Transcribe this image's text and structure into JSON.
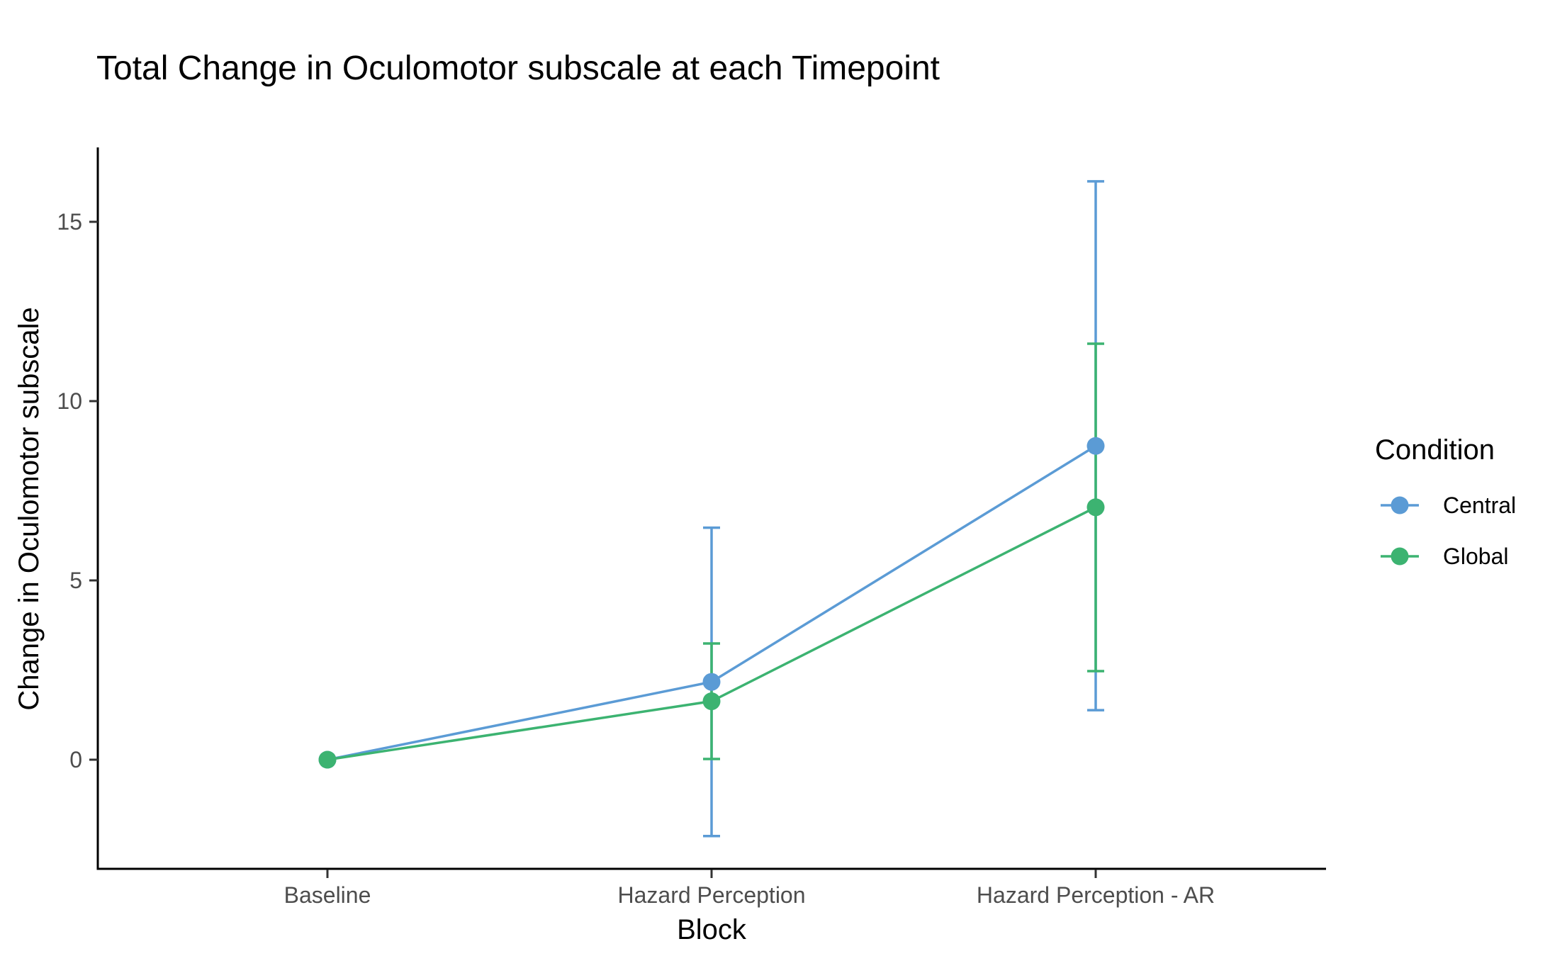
{
  "chart_data": {
    "type": "line",
    "title": "Total Change in Oculomotor subscale at each Timepoint",
    "xlabel": "Block",
    "ylabel": "Change in Oculomotor subscale",
    "categories": [
      "Baseline",
      "Hazard Perception",
      "Hazard Perception - AR"
    ],
    "yticks": [
      0,
      5,
      10,
      15
    ],
    "ylim": [
      -3,
      17
    ],
    "grid": false,
    "legend": {
      "title": "Condition",
      "placement": "right"
    },
    "series": [
      {
        "name": "Central",
        "color": "#5B9BD5",
        "values": [
          0,
          2.17,
          8.75
        ],
        "error_lower": [
          0,
          -2.13,
          1.38
        ],
        "error_upper": [
          0,
          6.47,
          16.13
        ]
      },
      {
        "name": "Global",
        "color": "#3CB371",
        "values": [
          0,
          1.63,
          7.04
        ],
        "error_lower": [
          0,
          0.02,
          2.47
        ],
        "error_upper": [
          0,
          3.24,
          11.6
        ]
      }
    ]
  }
}
